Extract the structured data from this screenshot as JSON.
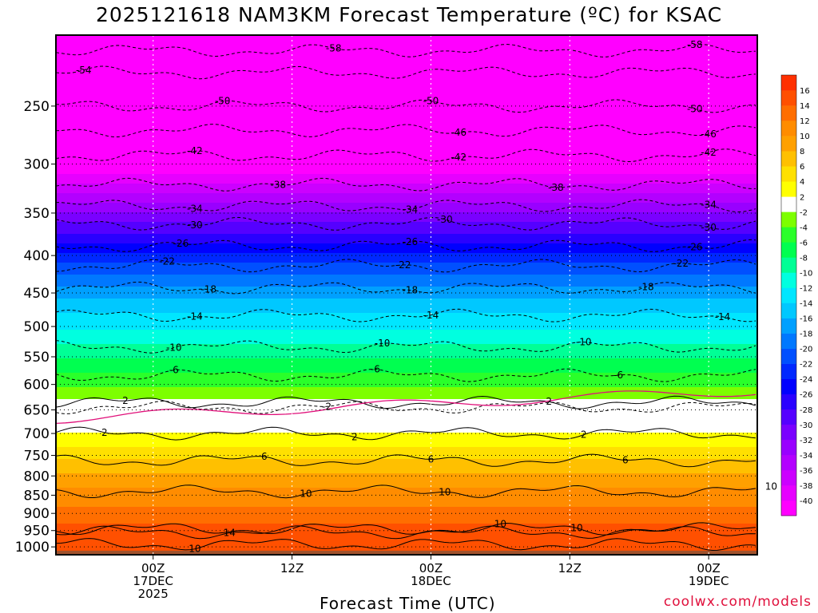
{
  "chart_data": {
    "type": "heatmap",
    "title": "2025121618 NAM3KM Forecast Temperature (ºC) for KSAC",
    "xlabel": "Forecast Time (UTC)",
    "ylabel": "",
    "y_scale": "log pressure",
    "y_ticks": [
      250,
      300,
      350,
      400,
      450,
      500,
      550,
      600,
      650,
      700,
      750,
      800,
      850,
      900,
      950,
      1000
    ],
    "ylim": [
      1025,
      200
    ],
    "x_range_hours": [
      -14,
      87
    ],
    "x_ticks": [
      {
        "hour": 0,
        "lines": [
          "00Z",
          "17DEC",
          "2025"
        ]
      },
      {
        "hour": 20,
        "lines": [
          "12Z"
        ]
      },
      {
        "hour": 40,
        "lines": [
          "00Z",
          "18DEC"
        ]
      },
      {
        "hour": 60,
        "lines": [
          "12Z"
        ]
      },
      {
        "hour": 80,
        "lines": [
          "00Z",
          "19DEC"
        ]
      }
    ],
    "colorbar": {
      "levels": [
        -40,
        -38,
        -36,
        -34,
        -32,
        -30,
        -28,
        -26,
        -24,
        -22,
        -20,
        -18,
        -16,
        -14,
        -12,
        -10,
        -8,
        -6,
        -4,
        -2,
        2,
        4,
        6,
        8,
        10,
        12,
        14,
        16
      ],
      "colors": [
        "#ff00ff",
        "#e600ff",
        "#cc00ff",
        "#b300ff",
        "#9900ff",
        "#7a00ff",
        "#5500ff",
        "#2a00ff",
        "#0000ff",
        "#0028ff",
        "#0050ff",
        "#0078ff",
        "#00a0ff",
        "#00c8ff",
        "#00e6ff",
        "#00ffe0",
        "#00ff96",
        "#00ff50",
        "#2aff2a",
        "#7dff00",
        "#ffffff",
        "#ffff00",
        "#ffe000",
        "#ffc000",
        "#ffa000",
        "#ff8c00",
        "#ff6e00",
        "#ff5000",
        "#ff3000"
      ]
    },
    "temperature_bands": [
      {
        "pressure": 200,
        "temp": -60
      },
      {
        "pressure": 225,
        "temp": -56
      },
      {
        "pressure": 250,
        "temp": -50
      },
      {
        "pressure": 275,
        "temp": -46
      },
      {
        "pressure": 300,
        "temp": -42
      },
      {
        "pressure": 320,
        "temp": -38
      },
      {
        "pressure": 340,
        "temp": -34
      },
      {
        "pressure": 360,
        "temp": -30
      },
      {
        "pressure": 385,
        "temp": -26
      },
      {
        "pressure": 410,
        "temp": -22
      },
      {
        "pressure": 440,
        "temp": -18
      },
      {
        "pressure": 480,
        "temp": -14
      },
      {
        "pressure": 530,
        "temp": -10
      },
      {
        "pressure": 580,
        "temp": -6
      },
      {
        "pressure": 630,
        "temp": -2
      },
      {
        "pressure": 665,
        "temp": 0
      },
      {
        "pressure": 700,
        "temp": 2
      },
      {
        "pressure": 760,
        "temp": 6
      },
      {
        "pressure": 830,
        "temp": 10
      },
      {
        "pressure": 930,
        "temp": 14
      },
      {
        "pressure": 1010,
        "temp": 16
      }
    ],
    "contours": [
      {
        "label": "-58",
        "pressure": 210,
        "label_hours": [
          26,
          78
        ]
      },
      {
        "label": "-54",
        "pressure": 225,
        "label_hours": [
          -10
        ]
      },
      {
        "label": "-50",
        "pressure": 250,
        "label_hours": [
          10,
          40,
          78
        ]
      },
      {
        "label": "-46",
        "pressure": 270,
        "label_hours": [
          44,
          80
        ]
      },
      {
        "label": "-42",
        "pressure": 292,
        "label_hours": [
          6,
          44,
          80
        ]
      },
      {
        "label": "-38",
        "pressure": 320,
        "label_hours": [
          18,
          58
        ]
      },
      {
        "label": "-34",
        "pressure": 342,
        "label_hours": [
          6,
          37,
          80
        ]
      },
      {
        "label": "-30",
        "pressure": 362,
        "label_hours": [
          6,
          42,
          80
        ]
      },
      {
        "label": "-26",
        "pressure": 388,
        "label_hours": [
          4,
          37,
          78
        ]
      },
      {
        "label": "-22",
        "pressure": 413,
        "label_hours": [
          2,
          36,
          76
        ]
      },
      {
        "label": "-18",
        "pressure": 443,
        "label_hours": [
          8,
          37,
          71
        ]
      },
      {
        "label": "-14",
        "pressure": 483,
        "label_hours": [
          6,
          40,
          82
        ]
      },
      {
        "label": "-10",
        "pressure": 533,
        "label_hours": [
          3,
          33,
          62
        ]
      },
      {
        "label": "-6",
        "pressure": 583,
        "label_hours": [
          3,
          32,
          67
        ]
      },
      {
        "label": "-2",
        "pressure": 645,
        "label_hours": [
          25
        ]
      },
      {
        "label": "2",
        "pressure": 635,
        "label_hours": [
          -4,
          57
        ]
      },
      {
        "label": "2",
        "pressure": 700,
        "label_hours": [
          -7,
          29,
          62
        ]
      },
      {
        "label": "6",
        "pressure": 762,
        "label_hours": [
          16,
          40,
          68
        ]
      },
      {
        "label": "10",
        "pressure": 840,
        "label_hours": [
          22,
          42,
          89
        ]
      },
      {
        "label": "10",
        "pressure": 945,
        "label_hours": [
          50,
          61
        ]
      },
      {
        "label": "14",
        "pressure": 955,
        "label_hours": [
          11
        ]
      },
      {
        "label": "10",
        "pressure": 992,
        "label_hours": [
          6
        ]
      }
    ],
    "freezing_line_pressure": 668,
    "credit": "coolwx.com/models"
  }
}
